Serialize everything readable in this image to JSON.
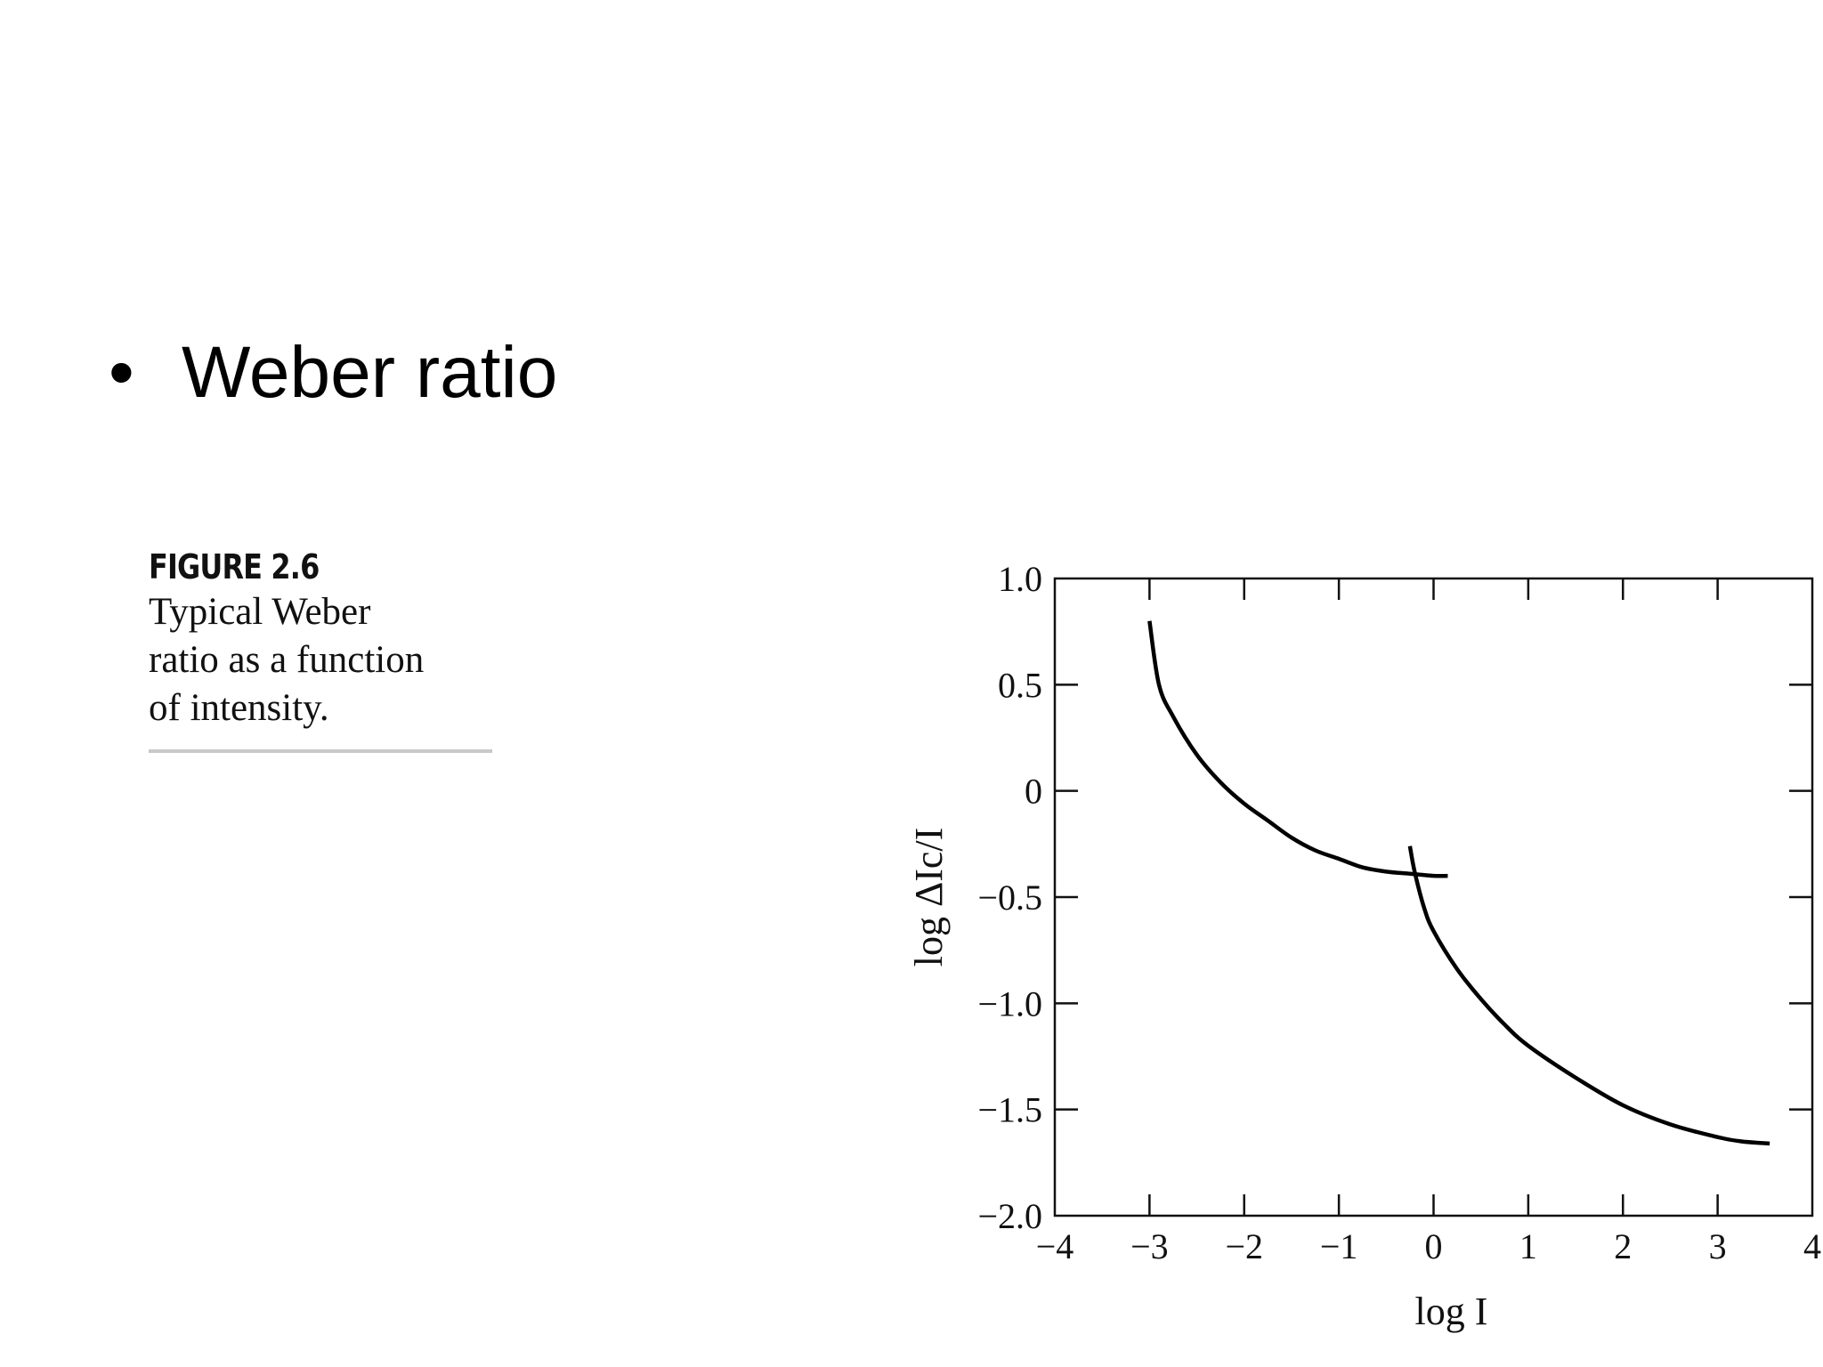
{
  "slide": {
    "bullet": "•",
    "title": "Weber ratio"
  },
  "figure": {
    "label": "FIGURE 2.6",
    "caption_lines": [
      "Typical Weber",
      "ratio as a function",
      "of intensity."
    ]
  },
  "chart_data": {
    "type": "line",
    "title": "",
    "xlabel": "log I",
    "ylabel": "log ΔIc/I",
    "xlim": [
      -4,
      4
    ],
    "ylim": [
      -2.0,
      1.0
    ],
    "x_ticks": [
      "−4",
      "−3",
      "−2",
      "−1",
      "0",
      "1",
      "2",
      "3",
      "4"
    ],
    "y_ticks": [
      "1.0",
      "0.5",
      "0",
      "−0.5",
      "−1.0",
      "−1.5",
      "−2.0"
    ],
    "grid": false,
    "series": [
      {
        "x": [
          -3.0,
          -2.9,
          -2.75,
          -2.5,
          -2.25,
          -2.0,
          -1.75,
          -1.5,
          -1.25,
          -1.0,
          -0.75,
          -0.5,
          -0.25,
          0.0,
          0.15
        ],
        "y": [
          0.8,
          0.5,
          0.35,
          0.17,
          0.04,
          -0.06,
          -0.14,
          -0.22,
          -0.28,
          -0.32,
          -0.36,
          -0.38,
          -0.39,
          -0.4,
          -0.4
        ],
        "color": "#000000"
      },
      {
        "x": [
          -0.25,
          -0.2,
          -0.1,
          0.0,
          0.25,
          0.5,
          0.75,
          1.0,
          1.5,
          2.0,
          2.5,
          3.0,
          3.25,
          3.55
        ],
        "y": [
          -0.26,
          -0.38,
          -0.55,
          -0.66,
          -0.84,
          -0.98,
          -1.1,
          -1.2,
          -1.35,
          -1.48,
          -1.57,
          -1.63,
          -1.65,
          -1.66
        ],
        "color": "#000000"
      }
    ]
  }
}
